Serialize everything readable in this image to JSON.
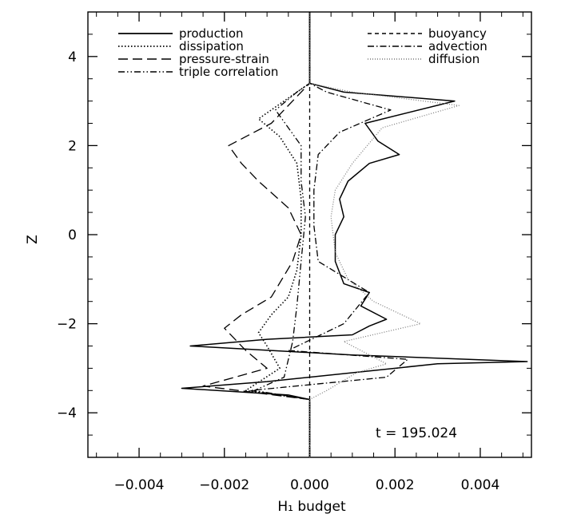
{
  "chart_data": {
    "type": "line",
    "title": "",
    "xlabel": "H₁ budget",
    "ylabel": "Z",
    "xlim": [
      -0.0052,
      0.0052
    ],
    "ylim": [
      -5,
      5
    ],
    "xticks": [
      {
        "value": -0.004,
        "label": "−0.004"
      },
      {
        "value": -0.002,
        "label": "−0.002"
      },
      {
        "value": 0.0,
        "label": "0.000"
      },
      {
        "value": 0.002,
        "label": "0.002"
      },
      {
        "value": 0.004,
        "label": "0.004"
      }
    ],
    "yticks": [
      {
        "value": -4,
        "label": "−4"
      },
      {
        "value": -2,
        "label": "−2"
      },
      {
        "value": 0,
        "label": "0"
      },
      {
        "value": 2,
        "label": "2"
      },
      {
        "value": 4,
        "label": "4"
      }
    ],
    "annotation": "t  =  195.024",
    "legend": {
      "placement": "top"
    },
    "series": [
      {
        "name": "production",
        "style": "solid",
        "points": [
          [
            0,
            -5
          ],
          [
            0,
            -3.7
          ],
          [
            -0.0005,
            -3.6
          ],
          [
            -0.003,
            -3.45
          ],
          [
            -0.001,
            -3.3
          ],
          [
            0.003,
            -2.9
          ],
          [
            0.0051,
            -2.85
          ],
          [
            0.001,
            -2.7
          ],
          [
            -0.0028,
            -2.5
          ],
          [
            -0.001,
            -2.35
          ],
          [
            0.001,
            -2.25
          ],
          [
            0.0014,
            -2.05
          ],
          [
            0.0018,
            -1.9
          ],
          [
            0.0012,
            -1.6
          ],
          [
            0.0014,
            -1.3
          ],
          [
            0.0008,
            -1.1
          ],
          [
            0.0006,
            -0.6
          ],
          [
            0.0006,
            0.0
          ],
          [
            0.0008,
            0.4
          ],
          [
            0.0007,
            0.8
          ],
          [
            0.0009,
            1.2
          ],
          [
            0.0014,
            1.6
          ],
          [
            0.0021,
            1.8
          ],
          [
            0.0016,
            2.1
          ],
          [
            0.0013,
            2.5
          ],
          [
            0.0034,
            3.0
          ],
          [
            0.0008,
            3.2
          ],
          [
            0,
            3.4
          ],
          [
            0,
            5
          ]
        ]
      },
      {
        "name": "dissipation",
        "style": "dotted",
        "points": [
          [
            0,
            -5
          ],
          [
            0,
            -3.7
          ],
          [
            -0.0015,
            -3.5
          ],
          [
            -0.0007,
            -3.0
          ],
          [
            -0.001,
            -2.5
          ],
          [
            -0.0012,
            -2.2
          ],
          [
            -0.0009,
            -1.8
          ],
          [
            -0.0005,
            -1.4
          ],
          [
            -0.0003,
            -0.8
          ],
          [
            -0.0002,
            0.0
          ],
          [
            -0.0002,
            0.8
          ],
          [
            -0.0003,
            1.6
          ],
          [
            -0.0007,
            2.2
          ],
          [
            -0.0012,
            2.6
          ],
          [
            -0.0003,
            3.2
          ],
          [
            0,
            3.4
          ],
          [
            0,
            5
          ]
        ]
      },
      {
        "name": "pressure-strain",
        "style": "longdash",
        "points": [
          [
            0,
            -5
          ],
          [
            0,
            -3.7
          ],
          [
            -0.0025,
            -3.4
          ],
          [
            -0.001,
            -3.0
          ],
          [
            -0.0015,
            -2.6
          ],
          [
            -0.002,
            -2.1
          ],
          [
            -0.0016,
            -1.8
          ],
          [
            -0.0009,
            -1.4
          ],
          [
            -0.0004,
            -0.6
          ],
          [
            -0.0002,
            0.0
          ],
          [
            -0.0005,
            0.6
          ],
          [
            -0.0012,
            1.2
          ],
          [
            -0.0016,
            1.6
          ],
          [
            -0.0019,
            2.0
          ],
          [
            -0.0009,
            2.5
          ],
          [
            -0.0002,
            3.2
          ],
          [
            0,
            3.4
          ],
          [
            0,
            5
          ]
        ]
      },
      {
        "name": "triple correlation",
        "style": "dashdotdot",
        "points": [
          [
            0,
            -5
          ],
          [
            0,
            -3.7
          ],
          [
            -0.0013,
            -3.5
          ],
          [
            -0.0006,
            -3.2
          ],
          [
            -0.0004,
            -2.4
          ],
          [
            -0.0003,
            -1.6
          ],
          [
            -0.0002,
            -0.6
          ],
          [
            -0.0001,
            0.4
          ],
          [
            -0.0002,
            1.2
          ],
          [
            -0.0002,
            2.0
          ],
          [
            -0.0008,
            2.8
          ],
          [
            -0.0003,
            3.2
          ],
          [
            0,
            3.4
          ],
          [
            0,
            5
          ]
        ]
      },
      {
        "name": "buoyancy",
        "style": "dashed",
        "points": [
          [
            0,
            -5
          ],
          [
            0,
            5
          ]
        ]
      },
      {
        "name": "advection",
        "style": "dashdot",
        "points": [
          [
            0,
            -5
          ],
          [
            0,
            -3.7
          ],
          [
            -0.0014,
            -3.5
          ],
          [
            0.0018,
            -3.2
          ],
          [
            0.0023,
            -2.8
          ],
          [
            -0.0005,
            -2.6
          ],
          [
            0.0008,
            -2.0
          ],
          [
            0.0014,
            -1.3
          ],
          [
            0.0002,
            -0.6
          ],
          [
            0.0001,
            0.2
          ],
          [
            0.0001,
            1.0
          ],
          [
            0.0002,
            1.8
          ],
          [
            0.0007,
            2.3
          ],
          [
            0.0019,
            2.8
          ],
          [
            0.0004,
            3.2
          ],
          [
            0,
            3.4
          ],
          [
            0,
            5
          ]
        ]
      },
      {
        "name": "diffusion",
        "style": "finedot",
        "points": [
          [
            0,
            -5
          ],
          [
            0,
            -3.7
          ],
          [
            0.0004,
            -3.5
          ],
          [
            0.0011,
            -3.1
          ],
          [
            0.0018,
            -2.9
          ],
          [
            0.0008,
            -2.4
          ],
          [
            0.0026,
            -2.0
          ],
          [
            0.0015,
            -1.5
          ],
          [
            0.0009,
            -1.0
          ],
          [
            0.0006,
            -0.4
          ],
          [
            0.0005,
            0.4
          ],
          [
            0.0006,
            1.0
          ],
          [
            0.001,
            1.6
          ],
          [
            0.0017,
            2.4
          ],
          [
            0.0035,
            2.9
          ],
          [
            0.001,
            3.2
          ],
          [
            0,
            3.4
          ],
          [
            0,
            5
          ]
        ]
      }
    ]
  }
}
